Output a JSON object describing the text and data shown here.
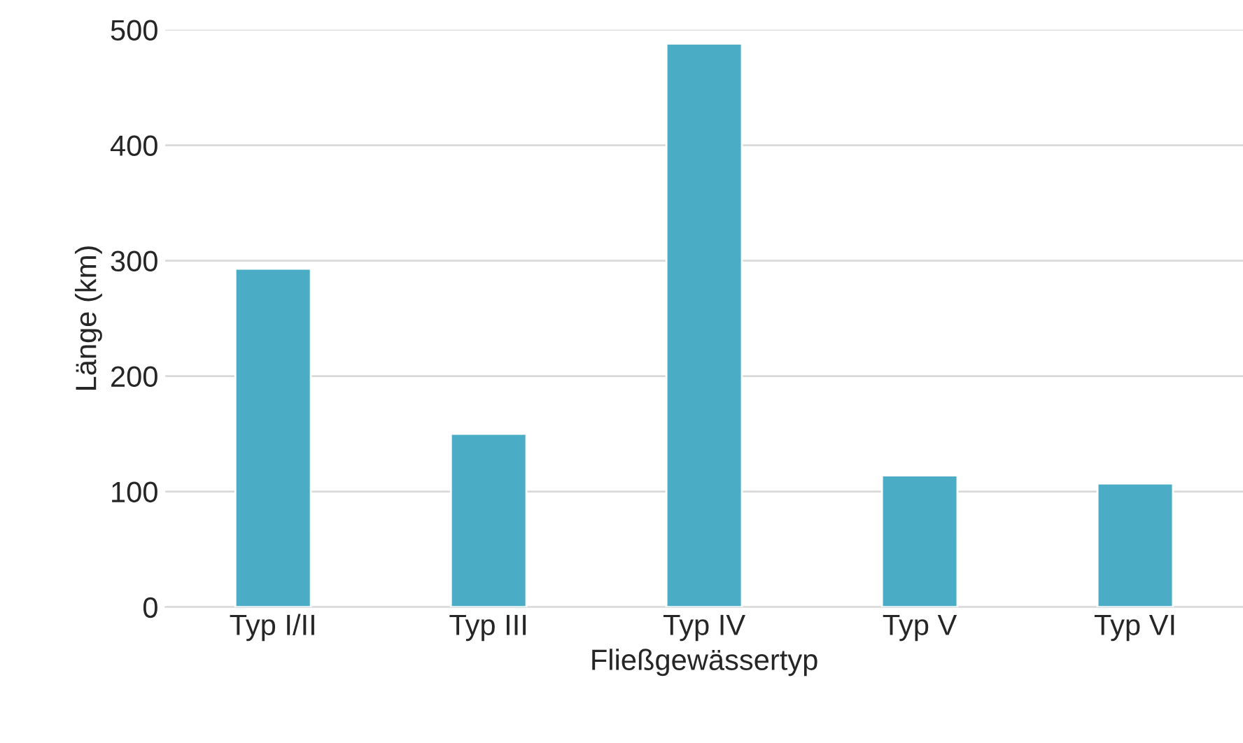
{
  "chart_data": {
    "type": "bar",
    "xlabel": "Fließgewässertyp",
    "ylabel": "Länge (km)",
    "categories": [
      "Typ I/II",
      "Typ III",
      "Typ IV",
      "Typ V",
      "Typ VI"
    ],
    "values": [
      293,
      150,
      488,
      114,
      107
    ],
    "color": "#4bacc6",
    "ylim": [
      0,
      500
    ],
    "yticks": [
      0,
      100,
      200,
      300,
      400,
      500
    ],
    "grid": "y",
    "legend": false
  }
}
